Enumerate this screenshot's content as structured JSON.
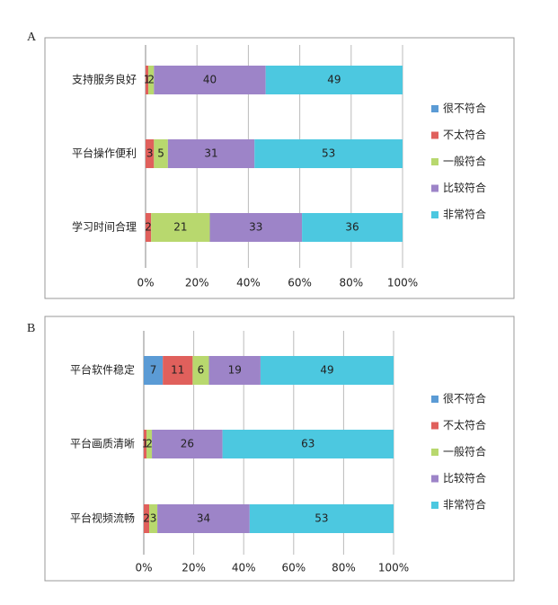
{
  "chart_data": [
    {
      "type": "stacked-bar-100",
      "panel_label": "A",
      "orientation": "horizontal",
      "categories": [
        "支持服务良好",
        "平台操作便利",
        "学习时间合理"
      ],
      "series": [
        {
          "name": "很不符合",
          "color": "#5b9bd5",
          "values": [
            0,
            0,
            0
          ]
        },
        {
          "name": "不太符合",
          "color": "#e0605c",
          "values": [
            1,
            3,
            2
          ]
        },
        {
          "name": "一般符合",
          "color": "#b8d86e",
          "values": [
            2,
            5,
            21
          ]
        },
        {
          "name": "比较符合",
          "color": "#9d84c8",
          "values": [
            40,
            31,
            33
          ]
        },
        {
          "name": "非常符合",
          "color": "#4cc8e0",
          "values": [
            49,
            53,
            36
          ]
        }
      ],
      "xlim": [
        0,
        100
      ],
      "xticks": [
        {
          "value": 0,
          "label": "0%"
        },
        {
          "value": 20,
          "label": "20%"
        },
        {
          "value": 40,
          "label": "40%"
        },
        {
          "value": 60,
          "label": "60%"
        },
        {
          "value": 80,
          "label": "80%"
        },
        {
          "value": 100,
          "label": "100%"
        }
      ],
      "grid": true,
      "legend": "right"
    },
    {
      "type": "stacked-bar-100",
      "panel_label": "B",
      "orientation": "horizontal",
      "categories": [
        "平台软件稳定",
        "平台画质清晰",
        "平台视频流畅"
      ],
      "series": [
        {
          "name": "很不符合",
          "color": "#5b9bd5",
          "values": [
            7,
            0,
            0
          ]
        },
        {
          "name": "不太符合",
          "color": "#e0605c",
          "values": [
            11,
            1,
            2
          ]
        },
        {
          "name": "一般符合",
          "color": "#b8d86e",
          "values": [
            6,
            2,
            3
          ]
        },
        {
          "name": "比较符合",
          "color": "#9d84c8",
          "values": [
            19,
            26,
            34
          ]
        },
        {
          "name": "非常符合",
          "color": "#4cc8e0",
          "values": [
            49,
            63,
            53
          ]
        }
      ],
      "xlim": [
        0,
        100
      ],
      "xticks": [
        {
          "value": 0,
          "label": "0%"
        },
        {
          "value": 20,
          "label": "20%"
        },
        {
          "value": 40,
          "label": "40%"
        },
        {
          "value": 60,
          "label": "60%"
        },
        {
          "value": 80,
          "label": "80%"
        },
        {
          "value": 100,
          "label": "100%"
        }
      ],
      "grid": true,
      "legend": "right"
    }
  ]
}
